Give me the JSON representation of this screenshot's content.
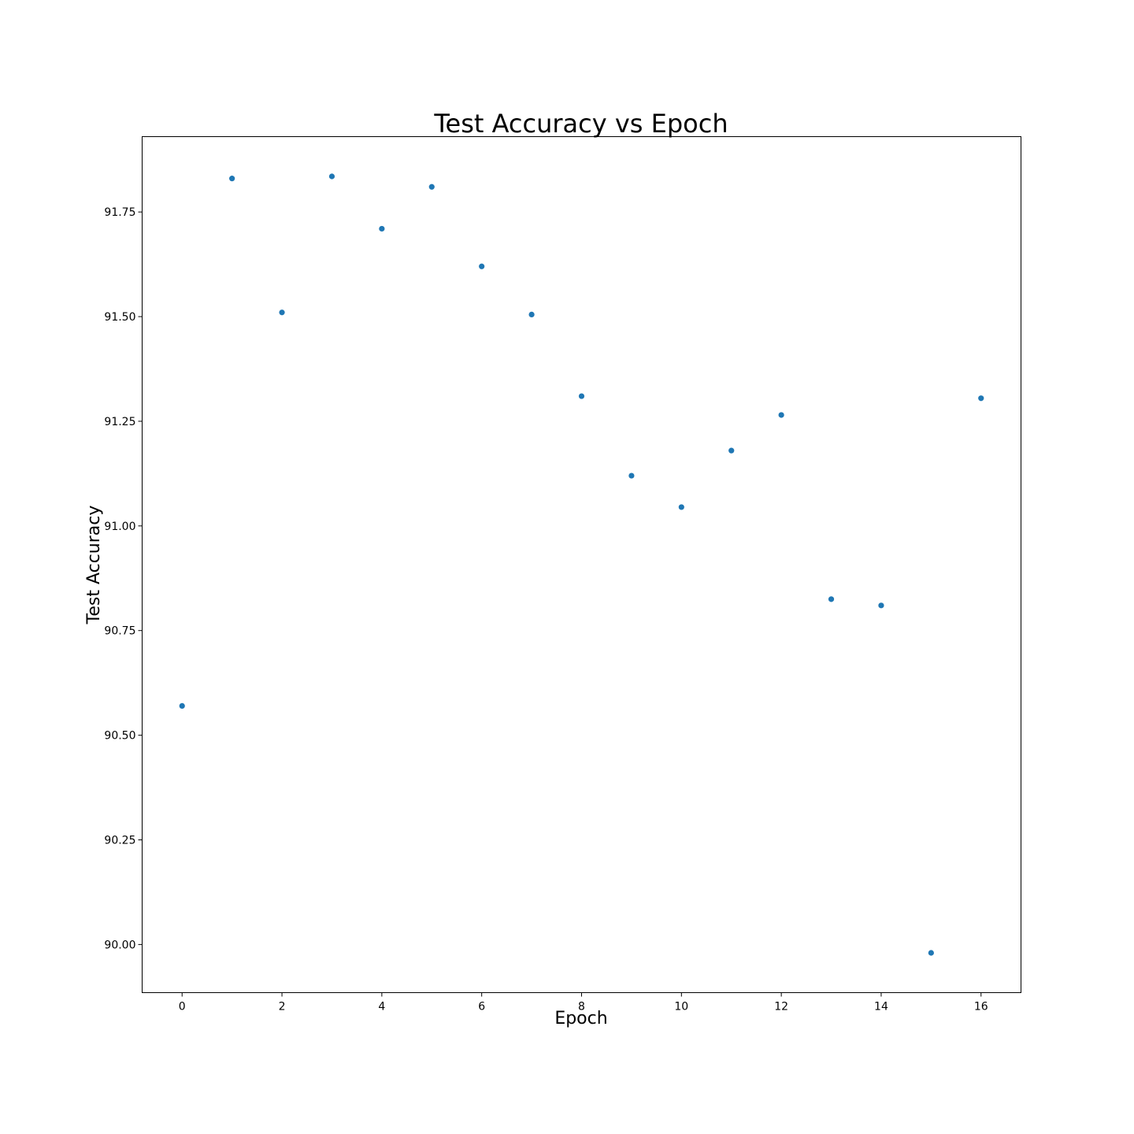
{
  "chart_data": {
    "type": "scatter",
    "title": "Test Accuracy vs Epoch",
    "xlabel": "Epoch",
    "ylabel": "Test Accuracy",
    "x": [
      0,
      1,
      2,
      3,
      4,
      5,
      6,
      7,
      8,
      9,
      10,
      11,
      12,
      13,
      14,
      15,
      16
    ],
    "y": [
      90.57,
      91.83,
      91.51,
      91.835,
      91.71,
      91.81,
      91.62,
      91.505,
      91.31,
      91.12,
      91.045,
      91.18,
      91.265,
      90.825,
      90.81,
      89.98,
      91.305
    ],
    "xlim": [
      -0.8,
      16.8
    ],
    "ylim": [
      89.885,
      91.93
    ],
    "xticks": [
      0,
      2,
      4,
      6,
      8,
      10,
      12,
      14,
      16
    ],
    "yticks": [
      "90.00",
      "90.25",
      "90.50",
      "90.75",
      "91.00",
      "91.25",
      "91.50",
      "91.75"
    ],
    "color": "#1f77b4",
    "grid": false,
    "legend": "none"
  }
}
